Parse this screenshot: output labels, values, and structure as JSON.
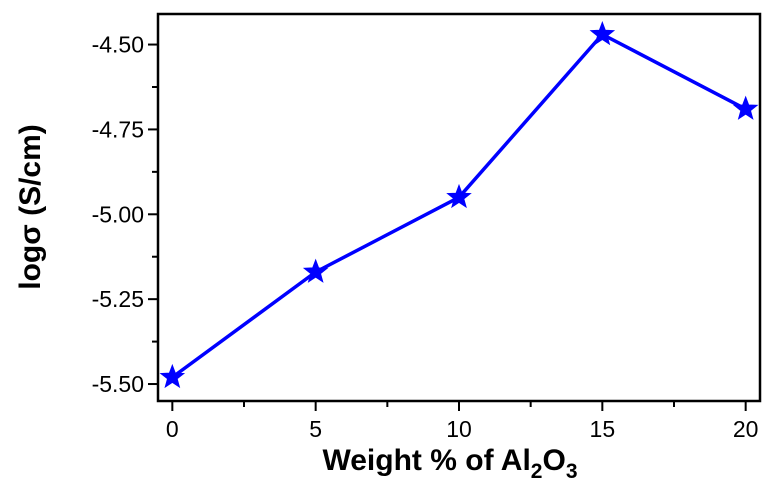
{
  "chart_data": {
    "type": "line",
    "xlabel": {
      "main": "Weight % of Al",
      "sub1": "2",
      "mid": "O",
      "sub2": "3"
    },
    "ylabel": "logσ (S/cm)",
    "x": [
      0,
      5,
      10,
      15,
      20
    ],
    "series": [
      {
        "values": [
          -5.48,
          -5.17,
          -4.95,
          -4.47,
          -4.69
        ],
        "color": "#0000ff",
        "marker": "star"
      }
    ],
    "xlim": [
      -0.5,
      20.5
    ],
    "ylim": [
      -5.55,
      -4.41
    ],
    "xticks": [
      0,
      5,
      10,
      15,
      20
    ],
    "xtick_labels": [
      "0",
      "5",
      "10",
      "15",
      "20"
    ],
    "yticks": [
      -5.5,
      -5.25,
      -5.0,
      -4.75,
      -4.5
    ],
    "ytick_labels": [
      "-5.50",
      "-5.25",
      "-5.00",
      "-4.75",
      "-4.50"
    ],
    "grid": false,
    "frame": "box"
  }
}
